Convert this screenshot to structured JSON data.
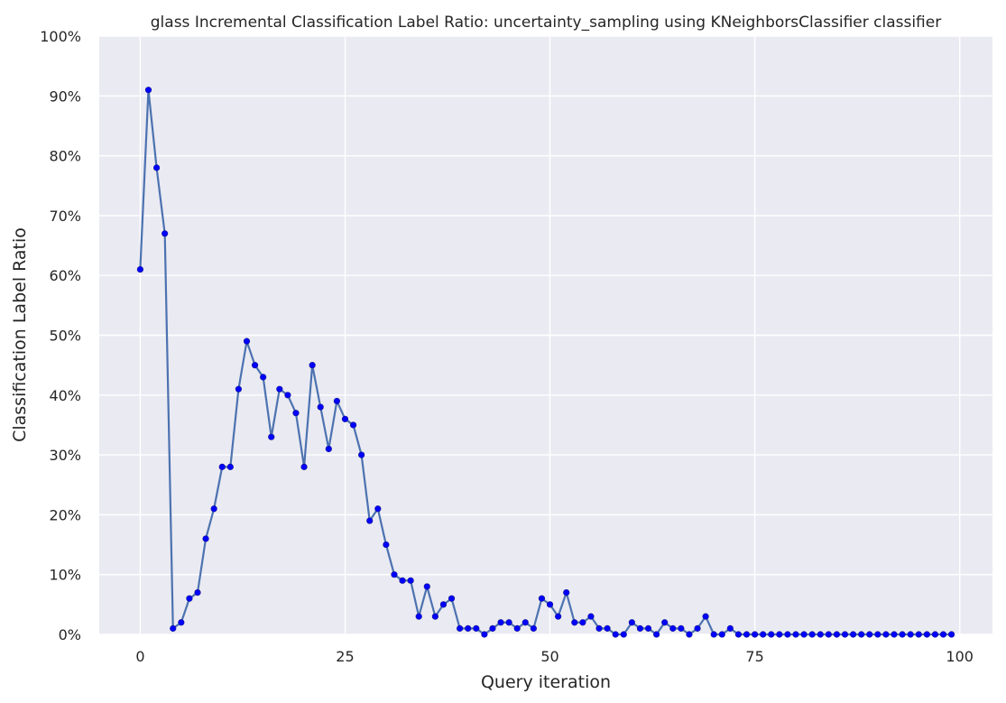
{
  "chart_data": {
    "type": "line",
    "title": "glass Incremental Classification Label Ratio: uncertainty_sampling using KNeighborsClassifier classifier",
    "xlabel": "Query iteration",
    "ylabel": "Classification Label Ratio",
    "xlim": [
      -5,
      104
    ],
    "ylim": [
      0,
      1
    ],
    "x_ticks": [
      0,
      25,
      50,
      75,
      100
    ],
    "x_tick_labels": [
      "0",
      "25",
      "50",
      "75",
      "100"
    ],
    "y_ticks": [
      0,
      0.1,
      0.2,
      0.3,
      0.4,
      0.5,
      0.6,
      0.7,
      0.8,
      0.9,
      1.0
    ],
    "y_tick_labels": [
      "0%",
      "10%",
      "20%",
      "30%",
      "40%",
      "50%",
      "60%",
      "70%",
      "80%",
      "90%",
      "100%"
    ],
    "grid": true,
    "line_color": "#4c72b0",
    "marker_color": "#0000ff",
    "background_color": "#eaeaf2",
    "series": [
      {
        "x": [
          0,
          1,
          2,
          3,
          4,
          5,
          6,
          7,
          8,
          9,
          10,
          11,
          12,
          13,
          14,
          15,
          16,
          17,
          18,
          19,
          20,
          21,
          22,
          23,
          24,
          25,
          26,
          27,
          28,
          29,
          30,
          31,
          32,
          33,
          34,
          35,
          36,
          37,
          38,
          39,
          40,
          41,
          42,
          43,
          44,
          45,
          46,
          47,
          48,
          49,
          50,
          51,
          52,
          53,
          54,
          55,
          56,
          57,
          58,
          59,
          60,
          61,
          62,
          63,
          64,
          65,
          66,
          67,
          68,
          69,
          70,
          71,
          72,
          73,
          74,
          75,
          76,
          77,
          78,
          79,
          80,
          81,
          82,
          83,
          84,
          85,
          86,
          87,
          88,
          89,
          90,
          91,
          92,
          93,
          94,
          95,
          96,
          97,
          98,
          99
        ],
        "y": [
          0.61,
          0.91,
          0.78,
          0.67,
          0.01,
          0.02,
          0.06,
          0.07,
          0.16,
          0.21,
          0.28,
          0.28,
          0.41,
          0.49,
          0.45,
          0.43,
          0.33,
          0.41,
          0.4,
          0.37,
          0.28,
          0.45,
          0.38,
          0.31,
          0.39,
          0.36,
          0.35,
          0.3,
          0.19,
          0.21,
          0.15,
          0.1,
          0.09,
          0.09,
          0.03,
          0.08,
          0.03,
          0.05,
          0.06,
          0.01,
          0.01,
          0.01,
          0.0,
          0.01,
          0.02,
          0.02,
          0.01,
          0.02,
          0.01,
          0.06,
          0.05,
          0.03,
          0.07,
          0.02,
          0.02,
          0.03,
          0.01,
          0.01,
          0.0,
          0.0,
          0.02,
          0.01,
          0.01,
          0.0,
          0.02,
          0.01,
          0.01,
          0.0,
          0.01,
          0.03,
          0.0,
          0.0,
          0.01,
          0.0,
          0.0,
          0.0,
          0.0,
          0.0,
          0.0,
          0.0,
          0.0,
          0.0,
          0.0,
          0.0,
          0.0,
          0.0,
          0.0,
          0.0,
          0.0,
          0.0,
          0.0,
          0.0,
          0.0,
          0.0,
          0.0,
          0.0,
          0.0,
          0.0,
          0.0,
          0.0
        ]
      }
    ]
  }
}
